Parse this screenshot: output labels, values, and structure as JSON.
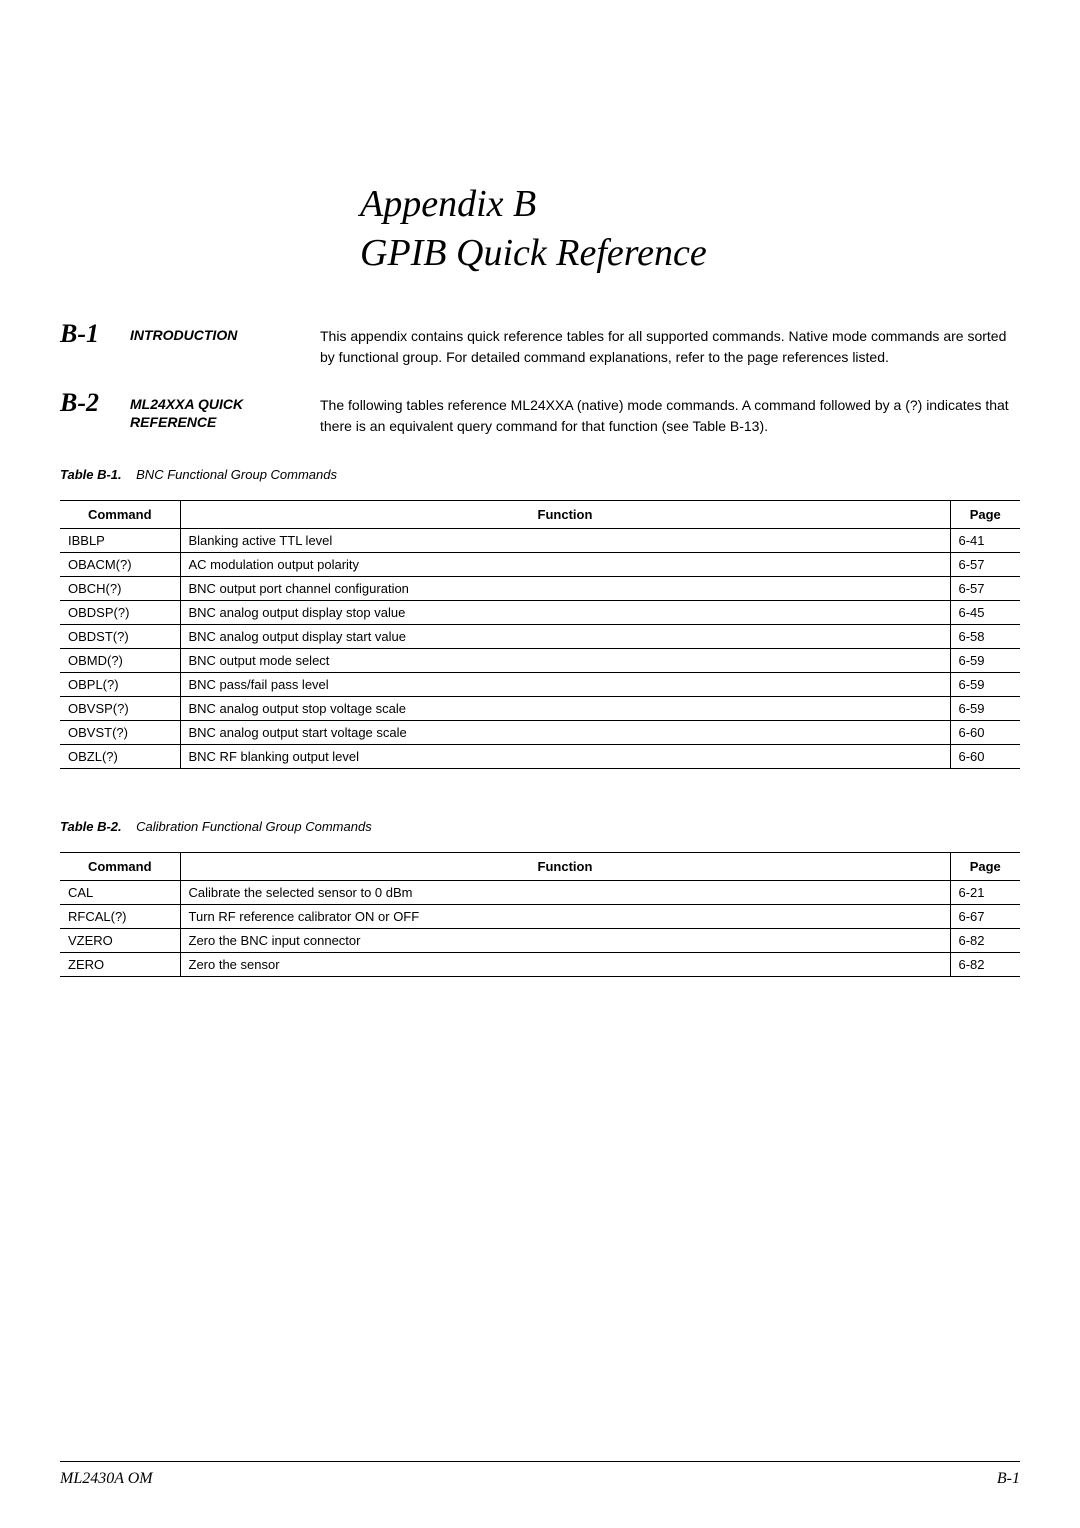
{
  "title": {
    "line1": "Appendix B",
    "line2": "GPIB Quick Reference"
  },
  "sections": [
    {
      "num": "B-1",
      "label": "INTRODUCTION",
      "body": "This appendix contains quick reference tables for all supported commands. Native mode commands are sorted by functional group. For detailed command explanations, refer to the page references listed."
    },
    {
      "num": "B-2",
      "label": "ML24XXA QUICK REFERENCE",
      "body": "The following tables reference ML24XXA (native) mode commands. A command followed by a (?) indicates that there is an equivalent query command for that function (see Table B-13)."
    }
  ],
  "tables": [
    {
      "caption_label": "Table B-1.",
      "caption_text": "BNC Functional Group Commands",
      "headers": {
        "cmd": "Command",
        "func": "Function",
        "page": "Page"
      },
      "rows": [
        {
          "cmd": "IBBLP",
          "func": "Blanking active TTL level",
          "page": "6-41"
        },
        {
          "cmd": "OBACM(?)",
          "func": "AC modulation output polarity",
          "page": "6-57"
        },
        {
          "cmd": "OBCH(?)",
          "func": "BNC output port channel configuration",
          "page": "6-57"
        },
        {
          "cmd": "OBDSP(?)",
          "func": "BNC analog output display stop value",
          "page": "6-45"
        },
        {
          "cmd": "OBDST(?)",
          "func": "BNC analog output display start value",
          "page": "6-58"
        },
        {
          "cmd": "OBMD(?)",
          "func": "BNC output mode select",
          "page": "6-59"
        },
        {
          "cmd": "OBPL(?)",
          "func": "BNC pass/fail pass level",
          "page": "6-59"
        },
        {
          "cmd": "OBVSP(?)",
          "func": "BNC analog output stop voltage scale",
          "page": "6-59"
        },
        {
          "cmd": "OBVST(?)",
          "func": "BNC analog output start voltage scale",
          "page": "6-60"
        },
        {
          "cmd": "OBZL(?)",
          "func": "BNC RF blanking output level",
          "page": "6-60"
        }
      ]
    },
    {
      "caption_label": "Table B-2.",
      "caption_text": "Calibration Functional Group Commands",
      "headers": {
        "cmd": "Command",
        "func": "Function",
        "page": "Page"
      },
      "rows": [
        {
          "cmd": "CAL",
          "func": "Calibrate the selected sensor to 0 dBm",
          "page": "6-21"
        },
        {
          "cmd": "RFCAL(?)",
          "func": "Turn RF reference calibrator ON or OFF",
          "page": "6-67"
        },
        {
          "cmd": "VZERO",
          "func": "Zero the BNC input connector",
          "page": "6-82"
        },
        {
          "cmd": "ZERO",
          "func": "Zero the sensor",
          "page": "6-82"
        }
      ]
    }
  ],
  "footer": {
    "left": "ML2430A OM",
    "right": "B-1"
  }
}
